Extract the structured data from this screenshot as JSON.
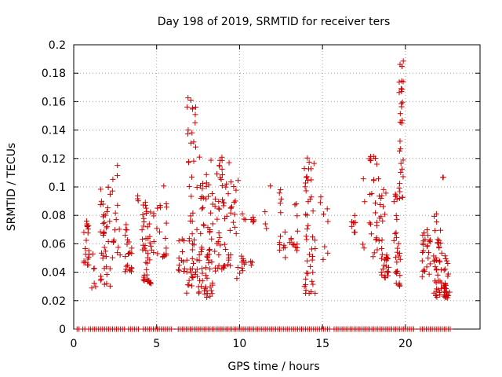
{
  "chart_data": {
    "type": "scatter",
    "title": "Day 198 of 2019, SRMTID for receiver ters",
    "xlabel": "GPS time / hours",
    "ylabel": "SRMTID / TECUs",
    "xlim": [
      0,
      24.5
    ],
    "ylim": [
      0,
      0.2
    ],
    "xticks": [
      0,
      5,
      10,
      15,
      20
    ],
    "yticks": [
      0,
      0.02,
      0.04,
      0.06,
      0.08,
      0.1,
      0.12,
      0.14,
      0.16,
      0.18,
      0.2
    ],
    "ytick_labels": [
      "0",
      "0.02",
      "0.04",
      "0.06",
      "0.08",
      "0.1",
      "0.12",
      "0.14",
      "0.16",
      "0.18",
      "0.2"
    ],
    "grid": true,
    "marker": "plus",
    "color": "#cc0000",
    "clusters": [
      {
        "x": [
          0.6,
          0.95
        ],
        "y": [
          0.045,
          0.08
        ],
        "n": 22
      },
      {
        "x": [
          1.0,
          1.4
        ],
        "y": [
          0.025,
          0.055
        ],
        "n": 6
      },
      {
        "x": [
          1.6,
          2.2
        ],
        "y": [
          0.03,
          0.1
        ],
        "n": 40
      },
      {
        "x": [
          2.3,
          2.8
        ],
        "y": [
          0.05,
          0.125
        ],
        "n": 16
      },
      {
        "x": [
          3.1,
          3.5
        ],
        "y": [
          0.04,
          0.075
        ],
        "n": 22
      },
      {
        "x": [
          3.8,
          4.0
        ],
        "y": [
          0.09,
          0.095
        ],
        "n": 3
      },
      {
        "x": [
          4.1,
          4.7
        ],
        "y": [
          0.032,
          0.09
        ],
        "n": 45
      },
      {
        "x": [
          4.8,
          5.6
        ],
        "y": [
          0.05,
          0.11
        ],
        "n": 22
      },
      {
        "x": [
          6.3,
          6.7
        ],
        "y": [
          0.04,
          0.065
        ],
        "n": 12
      },
      {
        "x": [
          6.8,
          7.6
        ],
        "y": [
          0.025,
          0.17
        ],
        "n": 60
      },
      {
        "x": [
          7.6,
          8.4
        ],
        "y": [
          0.022,
          0.12
        ],
        "n": 60
      },
      {
        "x": [
          8.5,
          9.4
        ],
        "y": [
          0.04,
          0.125
        ],
        "n": 50
      },
      {
        "x": [
          9.4,
          10.2
        ],
        "y": [
          0.035,
          0.11
        ],
        "n": 25
      },
      {
        "x": [
          10.2,
          11.0
        ],
        "y": [
          0.045,
          0.08
        ],
        "n": 14
      },
      {
        "x": [
          11.5,
          12.0
        ],
        "y": [
          0.07,
          0.103
        ],
        "n": 4
      },
      {
        "x": [
          12.4,
          12.8
        ],
        "y": [
          0.05,
          0.1
        ],
        "n": 14
      },
      {
        "x": [
          12.9,
          13.5
        ],
        "y": [
          0.055,
          0.09
        ],
        "n": 14
      },
      {
        "x": [
          13.9,
          14.6
        ],
        "y": [
          0.025,
          0.122
        ],
        "n": 45
      },
      {
        "x": [
          14.8,
          15.4
        ],
        "y": [
          0.048,
          0.095
        ],
        "n": 8
      },
      {
        "x": [
          16.6,
          17.0
        ],
        "y": [
          0.068,
          0.08
        ],
        "n": 8
      },
      {
        "x": [
          17.3,
          17.6
        ],
        "y": [
          0.056,
          0.11
        ],
        "n": 4
      },
      {
        "x": [
          17.8,
          18.6
        ],
        "y": [
          0.05,
          0.123
        ],
        "n": 30
      },
      {
        "x": [
          18.5,
          19.0
        ],
        "y": [
          0.036,
          0.1
        ],
        "n": 30
      },
      {
        "x": [
          19.3,
          19.7
        ],
        "y": [
          0.03,
          0.1
        ],
        "n": 30
      },
      {
        "x": [
          19.6,
          19.9
        ],
        "y": [
          0.09,
          0.193
        ],
        "n": 30
      },
      {
        "x": [
          21.0,
          21.5
        ],
        "y": [
          0.035,
          0.077
        ],
        "n": 25
      },
      {
        "x": [
          21.7,
          22.2
        ],
        "y": [
          0.022,
          0.082
        ],
        "n": 40
      },
      {
        "x": [
          22.3,
          22.7
        ],
        "y": [
          0.022,
          0.052
        ],
        "n": 30
      },
      {
        "x": [
          22.0,
          22.3
        ],
        "y": [
          0.106,
          0.107
        ],
        "n": 2
      }
    ],
    "zero_markers": {
      "y": 0,
      "segments": [
        [
          0.2,
          0.35
        ],
        [
          0.55,
          0.75
        ],
        [
          0.9,
          3.1
        ],
        [
          3.3,
          4.0
        ],
        [
          4.2,
          6.0
        ],
        [
          6.3,
          15.5
        ],
        [
          15.7,
          20.6
        ],
        [
          20.9,
          22.8
        ]
      ],
      "step": 0.12
    }
  }
}
